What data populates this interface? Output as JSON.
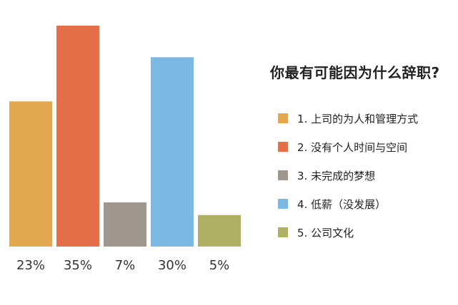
{
  "chart_data": {
    "type": "bar",
    "title": "你最有可能因为什么辞职?",
    "categories": [
      "1. 上司的为人和管理方式",
      "2. 没有个人时间与空间",
      "3. 未完成的梦想",
      "4. 低薪（没发展）",
      "5. 公司文化"
    ],
    "values": [
      23,
      35,
      7,
      30,
      5
    ],
    "value_labels": [
      "23%",
      "35%",
      "7%",
      "30%",
      "5%"
    ],
    "colors": [
      "#E1A84F",
      "#E37048",
      "#9F968E",
      "#7CB8E4",
      "#AEB164"
    ],
    "ylim": [
      0,
      35
    ],
    "grid": false,
    "legend_position": "right"
  }
}
